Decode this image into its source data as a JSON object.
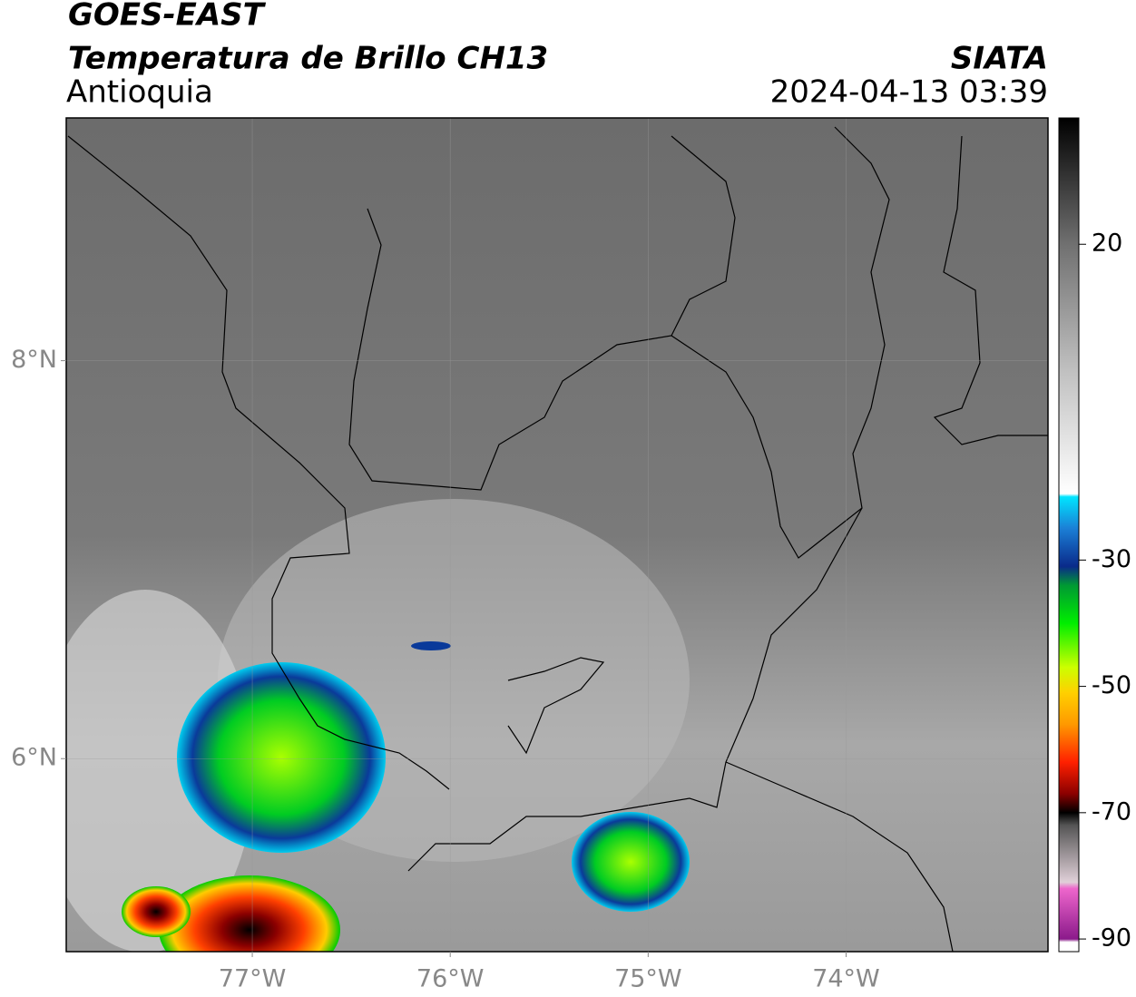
{
  "header": {
    "title": "GOES-EAST",
    "subtitle": "Temperatura de Brillo CH13",
    "region": "Antioquia",
    "source": "SIATA",
    "datetime": "2024-04-13 03:39"
  },
  "map": {
    "xlim": [
      -77.94,
      -72.98
    ],
    "ylim": [
      5.03,
      9.22
    ],
    "xticks": [
      {
        "value": -77,
        "label": "77°W"
      },
      {
        "value": -76,
        "label": "76°W"
      },
      {
        "value": -75,
        "label": "75°W"
      },
      {
        "value": -74,
        "label": "74°W"
      }
    ],
    "yticks": [
      {
        "value": 8,
        "label": "8°N"
      },
      {
        "value": 6,
        "label": "6°N"
      }
    ],
    "grid": true
  },
  "colorbar": {
    "lim": [
      -92,
      40
    ],
    "ticks": [
      20,
      -30,
      -50,
      -70,
      -90
    ],
    "colormap": [
      {
        "value": -92,
        "color": "#ffffff"
      },
      {
        "value": -90.5,
        "color": "#ffffff"
      },
      {
        "value": -90,
        "color": "#8b1a8b"
      },
      {
        "value": -82,
        "color": "#ee66cc"
      },
      {
        "value": -81,
        "color": "#e0d0d8"
      },
      {
        "value": -72,
        "color": "#555555"
      },
      {
        "value": -70,
        "color": "#000000"
      },
      {
        "value": -67,
        "color": "#8b0000"
      },
      {
        "value": -62,
        "color": "#ff2000"
      },
      {
        "value": -56,
        "color": "#ff9900"
      },
      {
        "value": -51,
        "color": "#ffd000"
      },
      {
        "value": -47,
        "color": "#ccff00"
      },
      {
        "value": -40,
        "color": "#00ee00"
      },
      {
        "value": -34,
        "color": "#009933"
      },
      {
        "value": -31,
        "color": "#0a2a8a"
      },
      {
        "value": -25,
        "color": "#1b7fd6"
      },
      {
        "value": -20,
        "color": "#00e5ff"
      },
      {
        "value": -19.5,
        "color": "#ffffff"
      },
      {
        "value": 0,
        "color": "#c0c0c0"
      },
      {
        "value": 20,
        "color": "#707070"
      },
      {
        "value": 40,
        "color": "#000000"
      }
    ]
  }
}
